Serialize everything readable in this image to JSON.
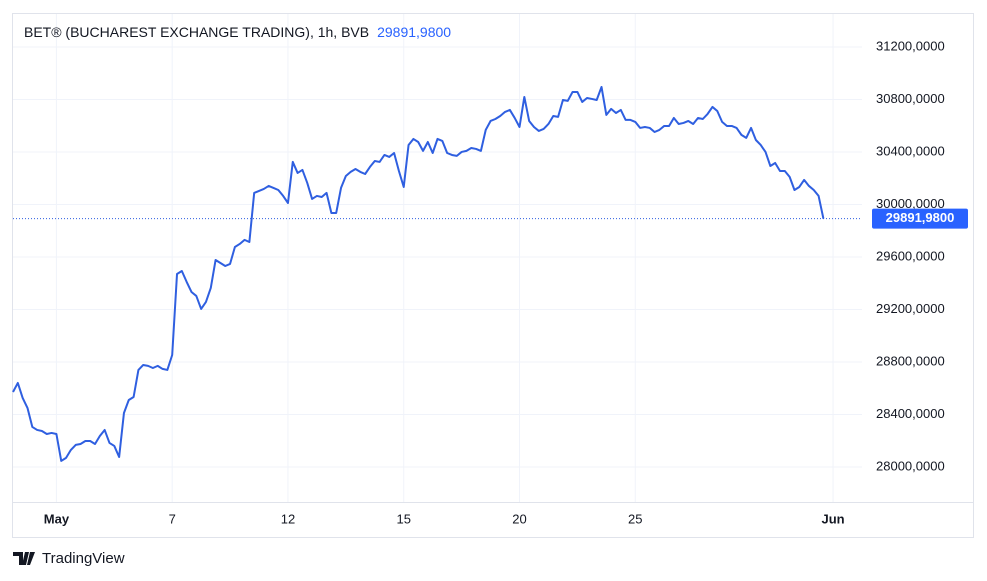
{
  "chart_data": {
    "type": "line",
    "title": "BET® (BUCHAREST EXCHANGE TRADING), 1h, BVB",
    "last_price": {
      "value": 29891.98,
      "label": "29891,9800"
    },
    "brand": "TradingView",
    "series": [
      {
        "name": "BET",
        "color": "#2f5fe0",
        "values": [
          28571,
          28640,
          28526,
          28450,
          28305,
          28282,
          28274,
          28251,
          28259,
          28251,
          28046,
          28069,
          28130,
          28168,
          28175,
          28198,
          28198,
          28175,
          28236,
          28282,
          28183,
          28160,
          28076,
          28411,
          28510,
          28533,
          28739,
          28777,
          28770,
          28754,
          28770,
          28747,
          28739,
          28853,
          29470,
          29493,
          29410,
          29333,
          29303,
          29204,
          29257,
          29364,
          29577,
          29554,
          29531,
          29547,
          29676,
          29699,
          29730,
          29714,
          30088,
          30103,
          30118,
          30141,
          30126,
          30110,
          30065,
          30011,
          30324,
          30240,
          30263,
          30164,
          30042,
          30065,
          30057,
          30088,
          29935,
          29935,
          30126,
          30217,
          30248,
          30270,
          30248,
          30232,
          30286,
          30331,
          30324,
          30377,
          30362,
          30392,
          30255,
          30133,
          30453,
          30499,
          30476,
          30408,
          30476,
          30392,
          30499,
          30484,
          30392,
          30377,
          30370,
          30400,
          30408,
          30430,
          30423,
          30408,
          30568,
          30636,
          30651,
          30674,
          30705,
          30720,
          30659,
          30590,
          30819,
          30636,
          30590,
          30560,
          30575,
          30613,
          30674,
          30667,
          30796,
          30789,
          30857,
          30857,
          30781,
          30811,
          30804,
          30796,
          30895,
          30682,
          30728,
          30697,
          30720,
          30644,
          30644,
          30629,
          30583,
          30590,
          30583,
          30552,
          30568,
          30598,
          30598,
          30659,
          30613,
          30621,
          30636,
          30613,
          30659,
          30651,
          30690,
          30743,
          30712,
          30629,
          30598,
          30598,
          30583,
          30530,
          30507,
          30583,
          30491,
          30453,
          30400,
          30293,
          30316,
          30255,
          30255,
          30210,
          30110,
          30133,
          30187,
          30141,
          30110,
          30065,
          29891.98
        ]
      }
    ],
    "xlim": [
      0,
      176
    ],
    "xticks": [
      {
        "value": 9,
        "label": "May"
      },
      {
        "value": 33,
        "label": "7"
      },
      {
        "value": 57,
        "label": "12"
      },
      {
        "value": 81,
        "label": "15"
      },
      {
        "value": 105,
        "label": "20"
      },
      {
        "value": 129,
        "label": "25"
      },
      {
        "value": 170,
        "label": "Jun"
      }
    ],
    "ylim": [
      27733,
      31451
    ],
    "yticks": [
      {
        "value": 28000,
        "label": "28000,0000"
      },
      {
        "value": 28400,
        "label": "28400,0000"
      },
      {
        "value": 28800,
        "label": "28800,0000"
      },
      {
        "value": 29200,
        "label": "29200,0000"
      },
      {
        "value": 29600,
        "label": "29600,0000"
      },
      {
        "value": 30000,
        "label": "30000,0000"
      },
      {
        "value": 30400,
        "label": "30400,0000"
      },
      {
        "value": 30800,
        "label": "30800,0000"
      },
      {
        "value": 31200,
        "label": "31200,0000"
      }
    ],
    "grid": true
  }
}
